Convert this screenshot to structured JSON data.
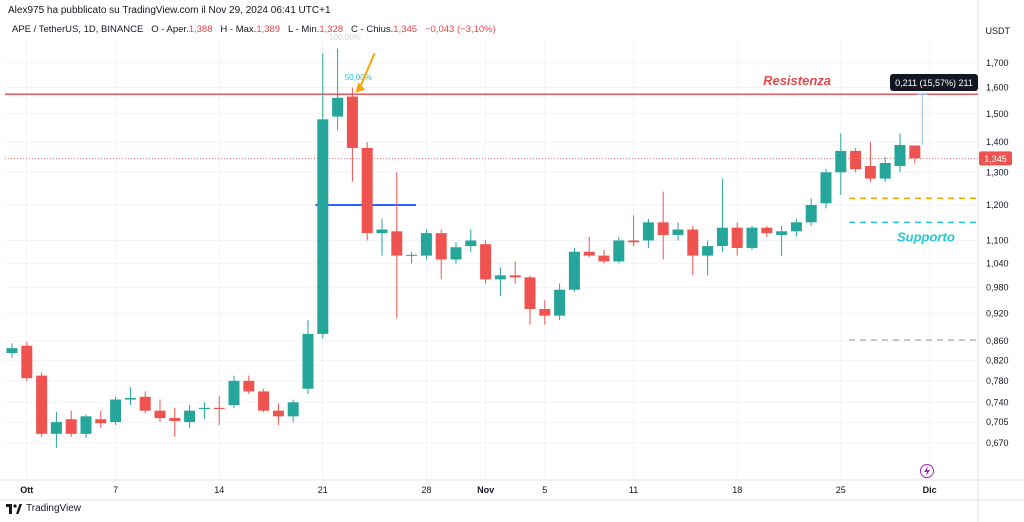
{
  "header": {
    "published_by": "Alex975 ha pubblicato su TradingView.com il Nov 29, 2024 06:41 UTC+1",
    "symbol": "APE / TetherUS, 1D, BINANCE",
    "open_label": "O - Aper.",
    "open_value": "1,388",
    "high_label": "H - Max.",
    "high_value": "1,389",
    "low_label": "L - Min.",
    "low_value": "1,328",
    "close_label": "C - Chius.",
    "close_value": "1,345",
    "change_value": "−0,043 (−3,10%)",
    "currency": "USDT"
  },
  "footer": {
    "brand": "TradingView"
  },
  "colors": {
    "up": "#26a69a",
    "down": "#ef5350",
    "resistance": "#e5484d",
    "support": "#26c6da",
    "blue_line": "#2962ff",
    "orange": "#f7a600"
  },
  "chart_data": {
    "type": "candlestick",
    "title": "",
    "ylabel": "USDT",
    "scale": "log",
    "ylim": [
      0.63,
      1.78
    ],
    "y_ticks": [
      "1,700",
      "1,600",
      "1,500",
      "1,400",
      "1,300",
      "1,200",
      "1,100",
      "1,040",
      "0,980",
      "0,920",
      "0,860",
      "0,820",
      "0,780",
      "0,740",
      "0,705",
      "0,670"
    ],
    "x_ticks": [
      {
        "label": "Ott",
        "index": 1
      },
      {
        "label": "7",
        "index": 7
      },
      {
        "label": "14",
        "index": 14
      },
      {
        "label": "21",
        "index": 21
      },
      {
        "label": "28",
        "index": 28
      },
      {
        "label": "Nov",
        "index": 32
      },
      {
        "label": "5",
        "index": 36
      },
      {
        "label": "11",
        "index": 42
      },
      {
        "label": "18",
        "index": 49
      },
      {
        "label": "25",
        "index": 56
      },
      {
        "label": "Dic",
        "index": 62
      }
    ],
    "candles": [
      {
        "o": 0.835,
        "h": 0.855,
        "l": 0.825,
        "c": 0.845
      },
      {
        "o": 0.85,
        "h": 0.858,
        "l": 0.78,
        "c": 0.785
      },
      {
        "o": 0.79,
        "h": 0.796,
        "l": 0.68,
        "c": 0.685
      },
      {
        "o": 0.685,
        "h": 0.723,
        "l": 0.662,
        "c": 0.705
      },
      {
        "o": 0.71,
        "h": 0.725,
        "l": 0.68,
        "c": 0.685
      },
      {
        "o": 0.685,
        "h": 0.718,
        "l": 0.678,
        "c": 0.715
      },
      {
        "o": 0.71,
        "h": 0.725,
        "l": 0.695,
        "c": 0.703
      },
      {
        "o": 0.705,
        "h": 0.75,
        "l": 0.7,
        "c": 0.745
      },
      {
        "o": 0.745,
        "h": 0.768,
        "l": 0.735,
        "c": 0.748
      },
      {
        "o": 0.75,
        "h": 0.76,
        "l": 0.72,
        "c": 0.725
      },
      {
        "o": 0.725,
        "h": 0.745,
        "l": 0.705,
        "c": 0.712
      },
      {
        "o": 0.712,
        "h": 0.73,
        "l": 0.68,
        "c": 0.707
      },
      {
        "o": 0.705,
        "h": 0.735,
        "l": 0.695,
        "c": 0.725
      },
      {
        "o": 0.728,
        "h": 0.74,
        "l": 0.71,
        "c": 0.73
      },
      {
        "o": 0.73,
        "h": 0.752,
        "l": 0.7,
        "c": 0.728
      },
      {
        "o": 0.735,
        "h": 0.79,
        "l": 0.73,
        "c": 0.78
      },
      {
        "o": 0.78,
        "h": 0.79,
        "l": 0.755,
        "c": 0.76
      },
      {
        "o": 0.76,
        "h": 0.765,
        "l": 0.722,
        "c": 0.725
      },
      {
        "o": 0.725,
        "h": 0.738,
        "l": 0.7,
        "c": 0.715
      },
      {
        "o": 0.715,
        "h": 0.745,
        "l": 0.705,
        "c": 0.74
      },
      {
        "o": 0.765,
        "h": 0.905,
        "l": 0.755,
        "c": 0.875
      },
      {
        "o": 0.875,
        "h": 1.74,
        "l": 0.865,
        "c": 1.48
      },
      {
        "o": 1.49,
        "h": 1.76,
        "l": 1.44,
        "c": 1.56
      },
      {
        "o": 1.565,
        "h": 1.6,
        "l": 1.27,
        "c": 1.38
      },
      {
        "o": 1.38,
        "h": 1.4,
        "l": 1.1,
        "c": 1.12
      },
      {
        "o": 1.12,
        "h": 1.16,
        "l": 1.06,
        "c": 1.13
      },
      {
        "o": 1.125,
        "h": 1.3,
        "l": 0.91,
        "c": 1.06
      },
      {
        "o": 1.06,
        "h": 1.07,
        "l": 1.04,
        "c": 1.062
      },
      {
        "o": 1.06,
        "h": 1.13,
        "l": 1.05,
        "c": 1.12
      },
      {
        "o": 1.12,
        "h": 1.13,
        "l": 1.0,
        "c": 1.05
      },
      {
        "o": 1.05,
        "h": 1.095,
        "l": 1.04,
        "c": 1.082
      },
      {
        "o": 1.085,
        "h": 1.13,
        "l": 1.07,
        "c": 1.1
      },
      {
        "o": 1.09,
        "h": 1.1,
        "l": 0.99,
        "c": 1.0
      },
      {
        "o": 1.0,
        "h": 1.03,
        "l": 0.96,
        "c": 1.01
      },
      {
        "o": 1.01,
        "h": 1.045,
        "l": 0.99,
        "c": 1.005
      },
      {
        "o": 1.005,
        "h": 1.01,
        "l": 0.895,
        "c": 0.93
      },
      {
        "o": 0.93,
        "h": 0.95,
        "l": 0.895,
        "c": 0.915
      },
      {
        "o": 0.915,
        "h": 0.99,
        "l": 0.905,
        "c": 0.975
      },
      {
        "o": 0.975,
        "h": 1.08,
        "l": 0.97,
        "c": 1.07
      },
      {
        "o": 1.07,
        "h": 1.11,
        "l": 1.055,
        "c": 1.06
      },
      {
        "o": 1.06,
        "h": 1.075,
        "l": 1.04,
        "c": 1.045
      },
      {
        "o": 1.045,
        "h": 1.11,
        "l": 1.04,
        "c": 1.1
      },
      {
        "o": 1.1,
        "h": 1.17,
        "l": 1.085,
        "c": 1.095
      },
      {
        "o": 1.1,
        "h": 1.16,
        "l": 1.08,
        "c": 1.15
      },
      {
        "o": 1.15,
        "h": 1.24,
        "l": 1.05,
        "c": 1.115
      },
      {
        "o": 1.115,
        "h": 1.15,
        "l": 1.1,
        "c": 1.13
      },
      {
        "o": 1.13,
        "h": 1.14,
        "l": 1.01,
        "c": 1.06
      },
      {
        "o": 1.06,
        "h": 1.1,
        "l": 1.01,
        "c": 1.085
      },
      {
        "o": 1.085,
        "h": 1.28,
        "l": 1.07,
        "c": 1.135
      },
      {
        "o": 1.135,
        "h": 1.15,
        "l": 1.06,
        "c": 1.08
      },
      {
        "o": 1.08,
        "h": 1.14,
        "l": 1.075,
        "c": 1.135
      },
      {
        "o": 1.135,
        "h": 1.14,
        "l": 1.11,
        "c": 1.12
      },
      {
        "o": 1.115,
        "h": 1.14,
        "l": 1.06,
        "c": 1.125
      },
      {
        "o": 1.125,
        "h": 1.16,
        "l": 1.11,
        "c": 1.15
      },
      {
        "o": 1.15,
        "h": 1.22,
        "l": 1.14,
        "c": 1.2
      },
      {
        "o": 1.205,
        "h": 1.31,
        "l": 1.19,
        "c": 1.3
      },
      {
        "o": 1.3,
        "h": 1.43,
        "l": 1.23,
        "c": 1.37
      },
      {
        "o": 1.37,
        "h": 1.38,
        "l": 1.3,
        "c": 1.31
      },
      {
        "o": 1.32,
        "h": 1.4,
        "l": 1.27,
        "c": 1.28
      },
      {
        "o": 1.28,
        "h": 1.35,
        "l": 1.27,
        "c": 1.33
      },
      {
        "o": 1.32,
        "h": 1.43,
        "l": 1.3,
        "c": 1.39
      },
      {
        "o": 1.388,
        "h": 1.389,
        "l": 1.328,
        "c": 1.345
      }
    ],
    "current_price": {
      "value": 1.345,
      "label": "1,345"
    },
    "annotations": [
      {
        "type": "hline",
        "name": "resistance",
        "y": 1.574,
        "label": "Resistenza"
      },
      {
        "type": "hline",
        "name": "support",
        "y": 1.15,
        "label": "Supporto"
      },
      {
        "type": "hline",
        "name": "orange-dashed",
        "y": 1.22
      },
      {
        "type": "hline",
        "name": "grey-dashed",
        "y": 0.862
      },
      {
        "type": "hline",
        "name": "blue-level",
        "y": 1.2
      },
      {
        "type": "fib",
        "labels": [
          "100,00%",
          "50,00%"
        ]
      },
      {
        "type": "measure",
        "label": "0,211 (15,57%) 211"
      }
    ]
  }
}
